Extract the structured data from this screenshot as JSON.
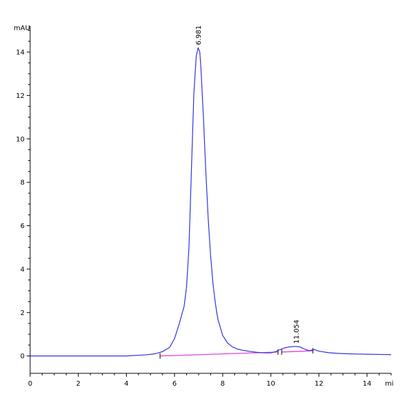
{
  "chart_data": {
    "type": "line",
    "title": "",
    "xlabel": "",
    "ylabel": "",
    "y_unit_label": "mAU",
    "x_unit_label": "mi",
    "xlim": [
      0,
      15
    ],
    "ylim": [
      -0.8,
      15.2
    ],
    "x_ticks": [
      0,
      2,
      4,
      6,
      8,
      10,
      12,
      14
    ],
    "x_tick_labels": [
      "0",
      "2",
      "4",
      "6",
      "8",
      "10",
      "12",
      "14"
    ],
    "y_ticks": [
      0,
      2,
      4,
      6,
      8,
      10,
      12,
      14
    ],
    "y_tick_labels": [
      "0",
      "2",
      "4",
      "6",
      "8",
      "10",
      "12",
      "14"
    ],
    "grid": false,
    "colors": {
      "signal": "#3030e0",
      "baseline": "#e040e0",
      "axis": "#000000"
    },
    "series": [
      {
        "role": "signal",
        "x": [
          0,
          1,
          2,
          3,
          4,
          4.8,
          5.2,
          5.5,
          5.8,
          6.0,
          6.2,
          6.4,
          6.5,
          6.6,
          6.7,
          6.8,
          6.9,
          6.98,
          7.05,
          7.1,
          7.2,
          7.3,
          7.4,
          7.5,
          7.6,
          7.7,
          7.8,
          8.0,
          8.2,
          8.4,
          8.6,
          8.8,
          9.0,
          9.2,
          9.4,
          9.6,
          9.8,
          10.0,
          10.2,
          10.4,
          10.6,
          10.8,
          11.0,
          11.2,
          11.4,
          11.6,
          11.8,
          12.0,
          12.4,
          12.8,
          13.2,
          13.6,
          14.0,
          14.5,
          15.0
        ],
        "y": [
          0.0,
          0.0,
          0.0,
          0.0,
          0.0,
          0.05,
          0.1,
          0.2,
          0.4,
          0.8,
          1.5,
          2.3,
          3.2,
          5.0,
          8.5,
          12.0,
          13.8,
          14.2,
          14.0,
          13.2,
          11.0,
          8.5,
          6.3,
          4.6,
          3.3,
          2.4,
          1.7,
          0.95,
          0.6,
          0.42,
          0.32,
          0.27,
          0.23,
          0.2,
          0.17,
          0.15,
          0.14,
          0.14,
          0.2,
          0.3,
          0.38,
          0.42,
          0.44,
          0.42,
          0.32,
          0.24,
          0.3,
          0.22,
          0.15,
          0.12,
          0.1,
          0.09,
          0.08,
          0.07,
          0.06
        ]
      },
      {
        "role": "baseline",
        "x": [
          5.4,
          10.3
        ],
        "y": [
          0.0,
          0.18
        ]
      },
      {
        "role": "baseline",
        "x": [
          10.45,
          11.75
        ],
        "y": [
          0.18,
          0.24
        ]
      }
    ],
    "peaks": [
      {
        "x": 6.981,
        "y": 14.2,
        "label": "6.981"
      },
      {
        "x": 11.054,
        "y": 0.44,
        "label": "11.054"
      }
    ]
  }
}
